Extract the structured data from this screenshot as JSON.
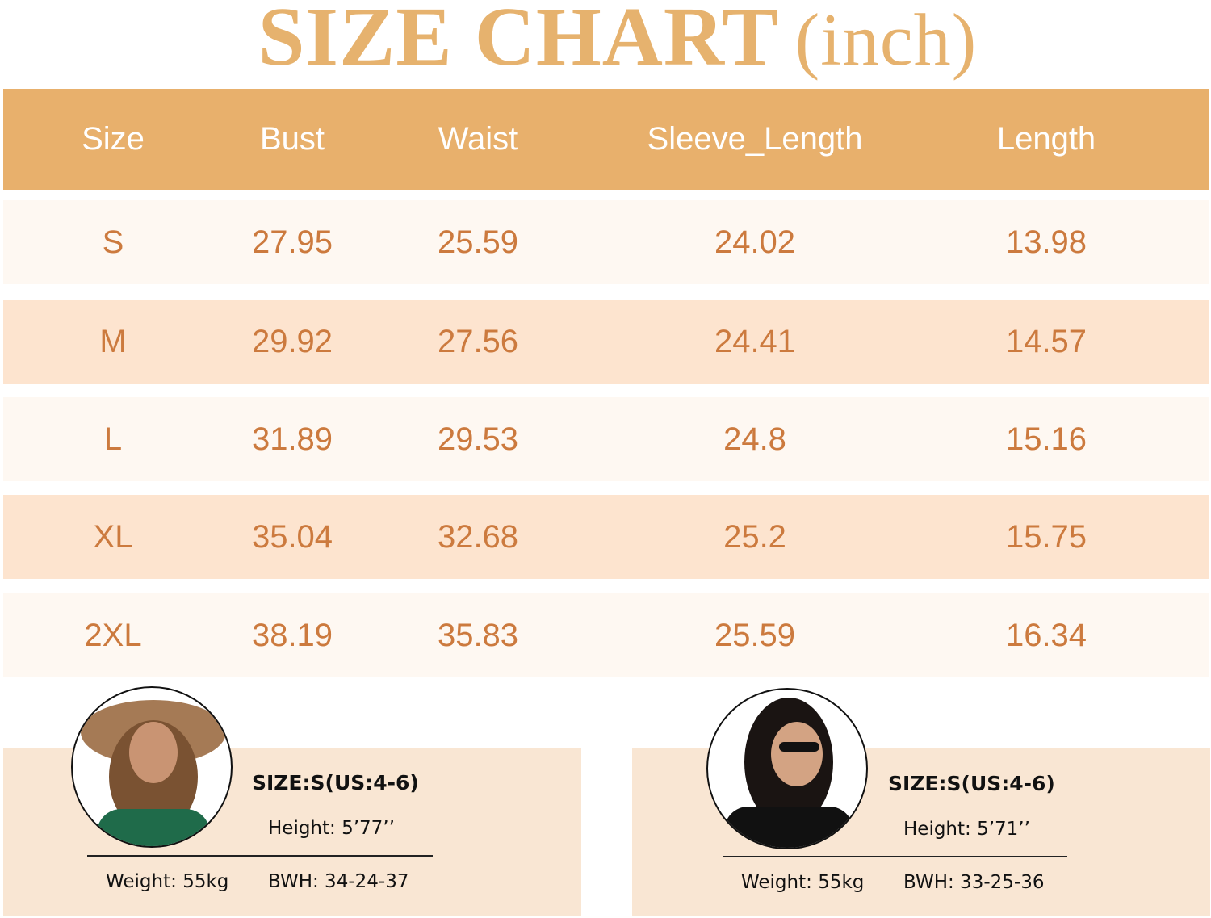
{
  "title": {
    "main": "SIZE CHART",
    "unit": "(inch)"
  },
  "colors": {
    "accent": "#e8b06c",
    "row_light": "#fef8f2",
    "row_dark": "#fde4cf",
    "cell_text": "#cc7a3e",
    "panel": "#f9e6d3"
  },
  "table": {
    "headers": [
      "Size",
      "Bust",
      "Waist",
      "Sleeve_Length",
      "Length"
    ],
    "rows": [
      [
        "S",
        "27.95",
        "25.59",
        "24.02",
        "13.98"
      ],
      [
        "M",
        "29.92",
        "27.56",
        "24.41",
        "14.57"
      ],
      [
        "L",
        "31.89",
        "29.53",
        "24.8",
        "15.16"
      ],
      [
        "XL",
        "35.04",
        "32.68",
        "25.2",
        "15.75"
      ],
      [
        "2XL",
        "38.19",
        "35.83",
        "25.59",
        "16.34"
      ]
    ]
  },
  "models": [
    {
      "size": "SIZE:S(US:4-6)",
      "height": "Height: 5’77’’",
      "weight": "Weight: 55kg",
      "bwh": "BWH: 34-24-37",
      "outfit_color": "#1f6b4a"
    },
    {
      "size": "SIZE:S(US:4-6)",
      "height": "Height: 5’71’’",
      "weight": "Weight: 55kg",
      "bwh": "BWH: 33-25-36",
      "outfit_color": "#111111"
    }
  ]
}
